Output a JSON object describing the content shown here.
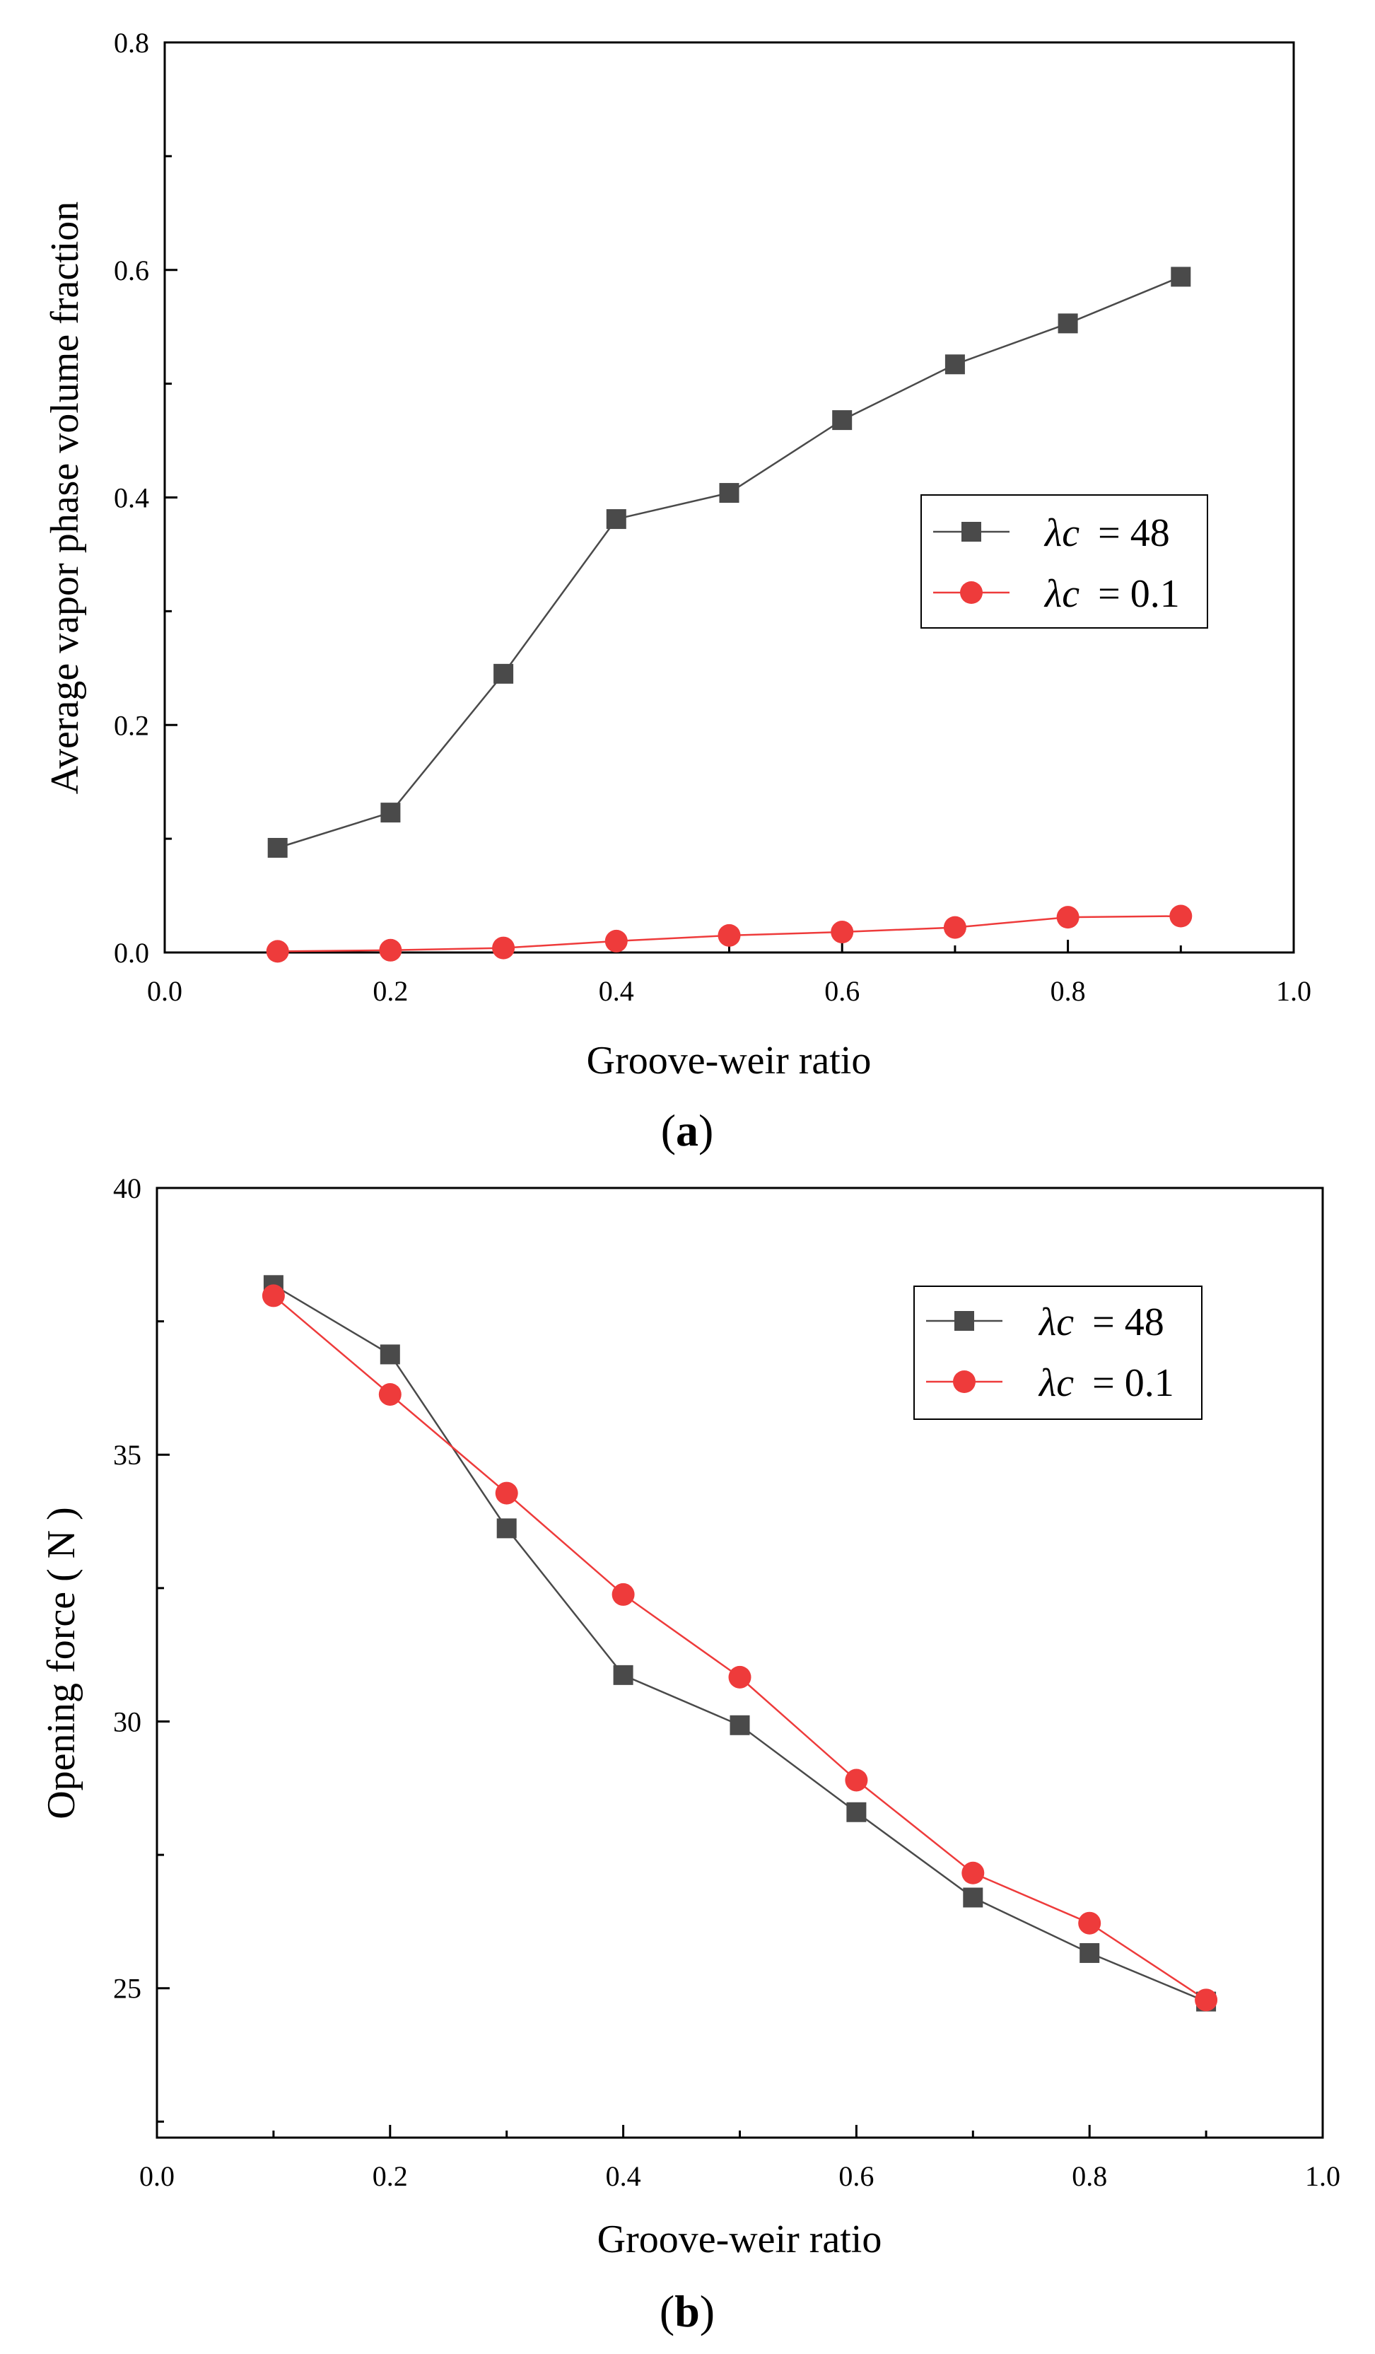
{
  "chart_data": [
    {
      "id": "a",
      "type": "line",
      "panel_label": {
        "open": "(",
        "letter": "a",
        "close": ")"
      },
      "xlabel": "Groove-weir ratio",
      "ylabel": "Average vapor phase volume fraction",
      "xlim": [
        0.0,
        1.0
      ],
      "ylim": [
        0.0,
        0.8
      ],
      "x_ticks": [
        "0.0",
        "0.2",
        "0.4",
        "0.6",
        "0.8",
        "1.0"
      ],
      "y_ticks": [
        "0.0",
        "0.2",
        "0.4",
        "0.6",
        "0.8"
      ],
      "x_tick_values": [
        0.0,
        0.2,
        0.4,
        0.6,
        0.8,
        1.0
      ],
      "y_tick_values": [
        0.0,
        0.2,
        0.4,
        0.6,
        0.8
      ],
      "legend_position": "right-middle",
      "x": [
        0.1,
        0.2,
        0.3,
        0.4,
        0.5,
        0.6,
        0.7,
        0.8,
        0.9
      ],
      "series": [
        {
          "name": "λc = 48",
          "label_symbol": "λc",
          "label_value": "= 48",
          "marker": "square",
          "color": "#4a4a4a",
          "values": [
            0.092,
            0.123,
            0.245,
            0.381,
            0.404,
            0.468,
            0.517,
            0.553,
            0.594
          ]
        },
        {
          "name": "λc = 0.1",
          "label_symbol": "λc",
          "label_value": "= 0.1",
          "marker": "circle",
          "color": "#ee3b3b",
          "values": [
            0.001,
            0.002,
            0.004,
            0.01,
            0.015,
            0.018,
            0.022,
            0.031,
            0.032
          ]
        }
      ]
    },
    {
      "id": "b",
      "type": "line",
      "panel_label": {
        "open": "(",
        "letter": "b",
        "close": ")"
      },
      "xlabel": "Groove-weir ratio",
      "ylabel": "Opening force ( N )",
      "xlim": [
        0.0,
        1.0
      ],
      "ylim": [
        22.2,
        40.0
      ],
      "x_ticks": [
        "0.0",
        "0.2",
        "0.4",
        "0.6",
        "0.8",
        "1.0"
      ],
      "y_ticks": [
        "25",
        "30",
        "35",
        "40"
      ],
      "x_tick_values": [
        0.0,
        0.2,
        0.4,
        0.6,
        0.8,
        1.0
      ],
      "y_tick_values": [
        25,
        30,
        35,
        40
      ],
      "legend_position": "top-right",
      "x": [
        0.1,
        0.2,
        0.3,
        0.4,
        0.5,
        0.6,
        0.7,
        0.8,
        0.9
      ],
      "series": [
        {
          "name": "λc = 48",
          "label_symbol": "λc",
          "label_value": "= 48",
          "marker": "square",
          "color": "#4a4a4a",
          "values": [
            38.18,
            36.88,
            33.62,
            30.87,
            29.93,
            28.3,
            26.7,
            25.66,
            24.75
          ]
        },
        {
          "name": "λc = 0.1",
          "label_symbol": "λc",
          "label_value": "= 0.1",
          "marker": "circle",
          "color": "#ee3b3b",
          "values": [
            37.98,
            36.13,
            34.28,
            32.38,
            30.83,
            28.9,
            27.16,
            26.22,
            24.78
          ]
        }
      ]
    }
  ]
}
